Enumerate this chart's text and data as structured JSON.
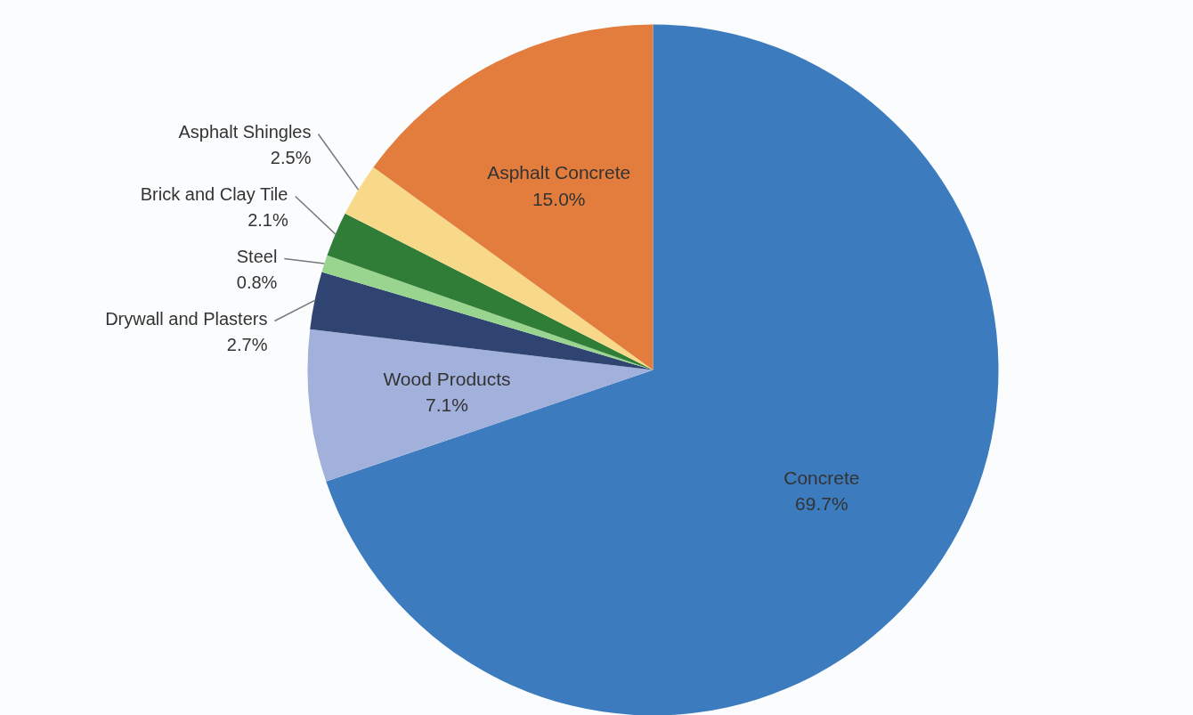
{
  "chart_data": {
    "type": "pie",
    "categories": [
      "Concrete",
      "Wood Products",
      "Drywall and Plasters",
      "Steel",
      "Brick and Clay Tile",
      "Asphalt Shingles",
      "Asphalt Concrete"
    ],
    "values": [
      69.7,
      7.1,
      2.7,
      0.8,
      2.1,
      2.5,
      15.0
    ],
    "value_labels": [
      "69.7%",
      "7.1%",
      "2.7%",
      "0.8%",
      "2.1%",
      "2.5%",
      "15.0%"
    ],
    "colors": [
      "#3d7bbf",
      "#a1b1dc",
      "#2f4470",
      "#9ad58f",
      "#2f7d36",
      "#f8d98a",
      "#e27d3d"
    ]
  }
}
